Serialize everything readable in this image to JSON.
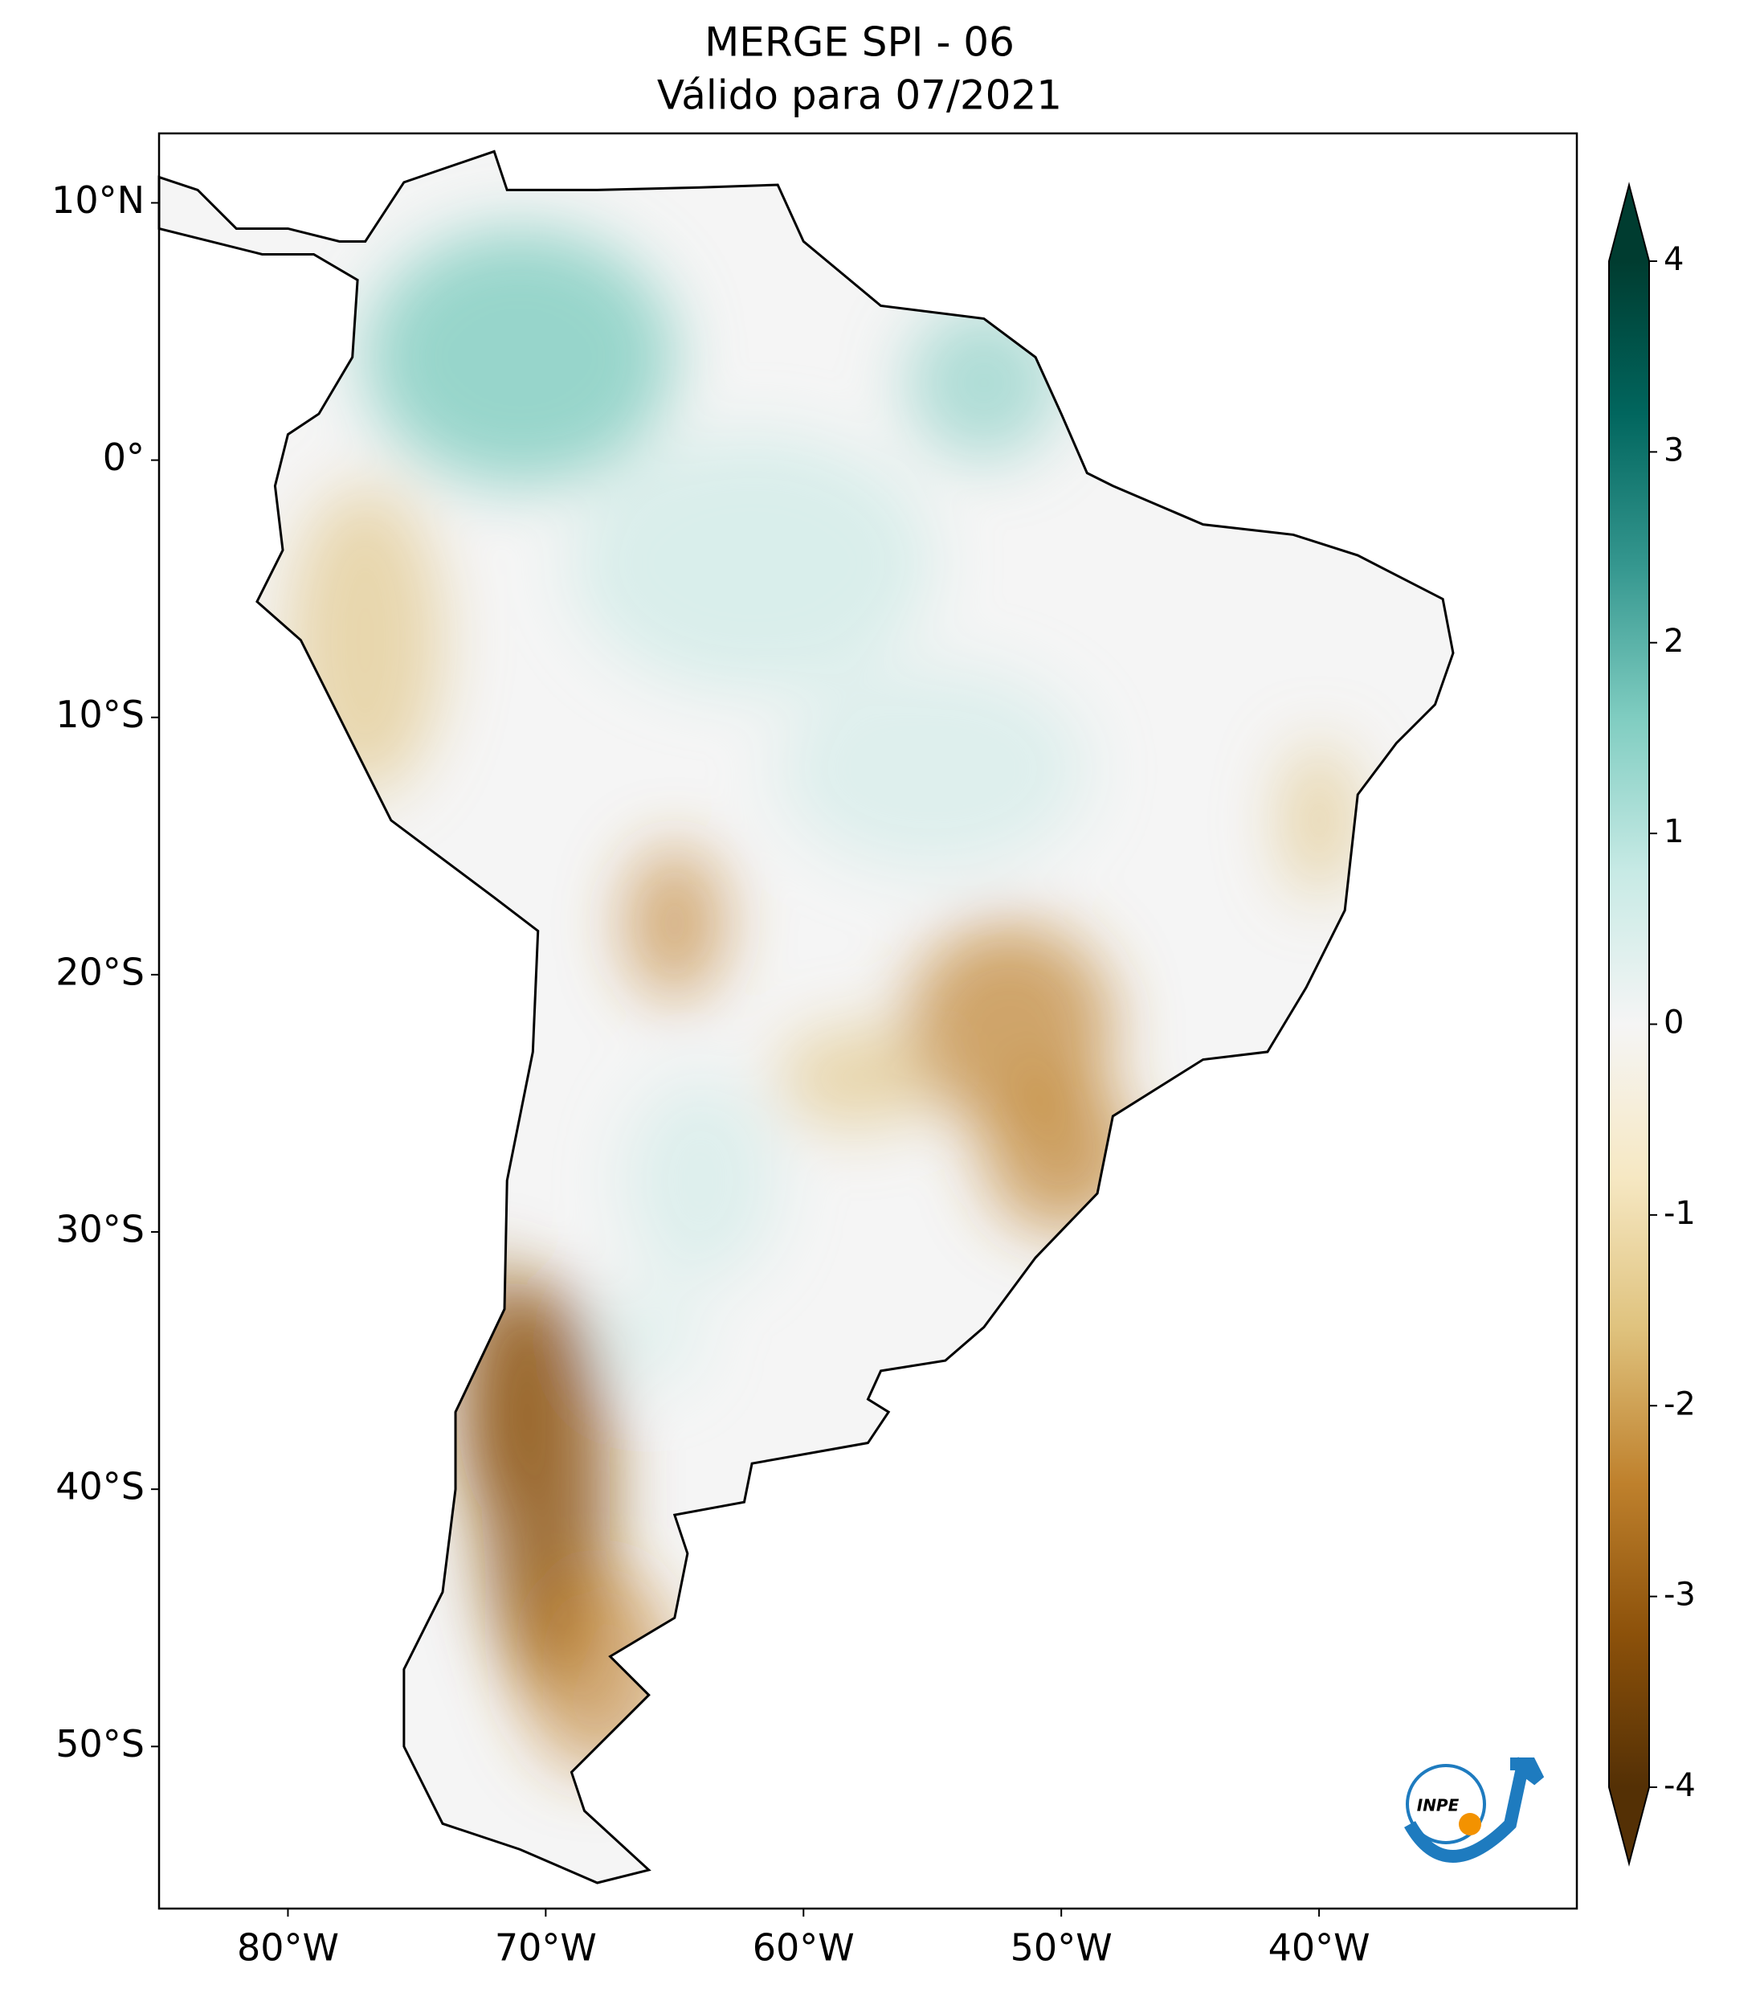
{
  "chart_data": {
    "type": "map",
    "title": "MERGE   SPI - 06",
    "subtitle": "Válido para 07/2021",
    "xlim": [
      -85,
      -30
    ],
    "ylim": [
      -56.3,
      12.7
    ],
    "xticks": [
      {
        "value": -80,
        "label": "80°W"
      },
      {
        "value": -70,
        "label": "70°W"
      },
      {
        "value": -60,
        "label": "60°W"
      },
      {
        "value": -50,
        "label": "50°W"
      },
      {
        "value": -40,
        "label": "40°W"
      }
    ],
    "yticks": [
      {
        "value": 10,
        "label": "10°N"
      },
      {
        "value": 0,
        "label": "0°"
      },
      {
        "value": -10,
        "label": "10°S"
      },
      {
        "value": -20,
        "label": "20°S"
      },
      {
        "value": -30,
        "label": "30°S"
      },
      {
        "value": -40,
        "label": "40°S"
      },
      {
        "value": -50,
        "label": "50°S"
      }
    ],
    "colorbar": {
      "lim": [
        -4,
        4
      ],
      "ticks": [
        -4,
        -3,
        -2,
        -1,
        0,
        1,
        2,
        3,
        4
      ],
      "colors": [
        "#543005",
        "#8c510a",
        "#bf812d",
        "#dfc27d",
        "#f6e8c3",
        "#f5f5f5",
        "#c7eae5",
        "#80cdc1",
        "#35978f",
        "#01665e",
        "#003c30"
      ]
    },
    "logo_text": "INPE"
  }
}
